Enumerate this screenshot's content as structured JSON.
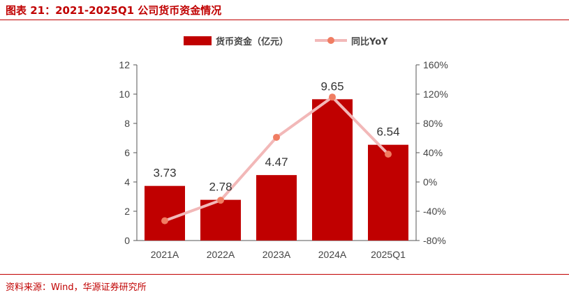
{
  "title": "图表 21：2021-2025Q1 公司货币资金情况",
  "source": "资料来源：Wind，华源证券研究所",
  "colors": {
    "bar": "#c00000",
    "line": "#f2b8b8",
    "marker": "#f07d62",
    "accent": "#c00000"
  },
  "chart_data": {
    "type": "bar",
    "categories": [
      "2021A",
      "2022A",
      "2023A",
      "2024A",
      "2025Q1"
    ],
    "series": [
      {
        "name": "货币资金（亿元）",
        "type": "bar",
        "axis": "left",
        "values": [
          3.73,
          2.78,
          4.47,
          9.65,
          6.54
        ],
        "labels": [
          "3.73",
          "2.78",
          "4.47",
          "9.65",
          "6.54"
        ]
      },
      {
        "name": "同比YoY",
        "type": "line",
        "axis": "right",
        "values": [
          -53,
          -25,
          61,
          116,
          38
        ]
      }
    ],
    "y_left": {
      "min": 0,
      "max": 12,
      "ticks": [
        "0",
        "2",
        "4",
        "6",
        "8",
        "10",
        "12"
      ]
    },
    "y_right": {
      "min": -80,
      "max": 160,
      "ticks": [
        "-80%",
        "-40%",
        "0%",
        "40%",
        "80%",
        "120%",
        "160%"
      ]
    },
    "legend": "top-center",
    "grid": false
  }
}
